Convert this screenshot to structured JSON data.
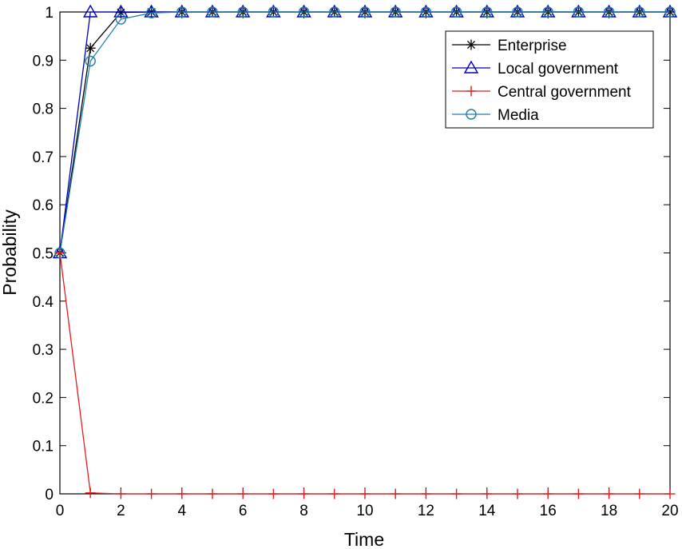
{
  "chart_data": {
    "type": "line",
    "xlabel": "Time",
    "ylabel": "Probability",
    "xlim": [
      0,
      20
    ],
    "ylim": [
      0,
      1
    ],
    "x_ticks": [
      0,
      2,
      4,
      6,
      8,
      10,
      12,
      14,
      16,
      18,
      20
    ],
    "x_tick_labels": [
      "0",
      "2",
      "4",
      "6",
      "8",
      "10",
      "12",
      "14",
      "16",
      "18",
      "20"
    ],
    "y_ticks": [
      0,
      0.1,
      0.2,
      0.3,
      0.4,
      0.5,
      0.6,
      0.7,
      0.8,
      0.9,
      1
    ],
    "y_tick_labels": [
      "0",
      "0.1",
      "0.2",
      "0.3",
      "0.4",
      "0.5",
      "0.6",
      "0.7",
      "0.8",
      "0.9",
      "1"
    ],
    "grid": false,
    "legend_position": "top-right",
    "x": [
      0,
      1,
      2,
      3,
      4,
      5,
      6,
      7,
      8,
      9,
      10,
      11,
      12,
      13,
      14,
      15,
      16,
      17,
      18,
      19,
      20
    ],
    "series": [
      {
        "name": "Enterprise",
        "color": "#000000",
        "marker": "asterisk",
        "values": [
          0.5,
          0.925,
          0.999,
          1,
          1,
          1,
          1,
          1,
          1,
          1,
          1,
          1,
          1,
          1,
          1,
          1,
          1,
          1,
          1,
          1,
          1
        ]
      },
      {
        "name": "Local government",
        "color": "#0000b4",
        "marker": "triangle",
        "values": [
          0.5,
          1,
          1,
          1,
          1,
          1,
          1,
          1,
          1,
          1,
          1,
          1,
          1,
          1,
          1,
          1,
          1,
          1,
          1,
          1,
          1
        ]
      },
      {
        "name": "Central government",
        "color": "#e41a1c",
        "marker": "plus",
        "values": [
          0.5,
          0.002,
          0,
          0,
          0,
          0,
          0,
          0,
          0,
          0,
          0,
          0,
          0,
          0,
          0,
          0,
          0,
          0,
          0,
          0,
          0
        ]
      },
      {
        "name": "Media",
        "color": "#1f7fa8",
        "marker": "circle",
        "values": [
          0.5,
          0.898,
          0.985,
          0.998,
          1,
          1,
          1,
          1,
          1,
          1,
          1,
          1,
          1,
          1,
          1,
          1,
          1,
          1,
          1,
          1,
          1
        ]
      }
    ]
  }
}
